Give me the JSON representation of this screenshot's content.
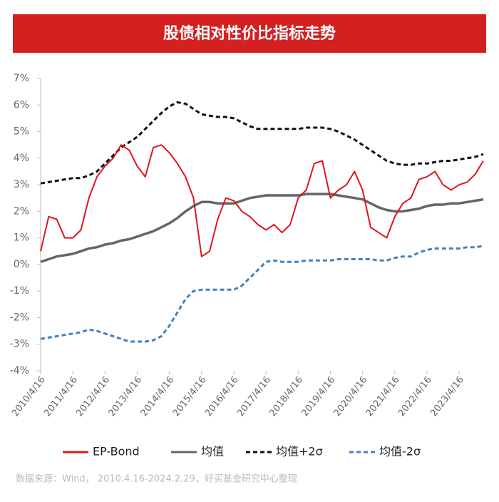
{
  "chart_data": {
    "type": "line",
    "title": "股债相对性价比指标走势",
    "source": "数据来源：Wind， 2010.4.16-2024.2.29，好买基金研究中心整理",
    "categories": [
      "2010/4/16",
      null,
      null,
      null,
      "2011/4/16",
      null,
      null,
      null,
      "2012/4/16",
      null,
      null,
      null,
      "2013/4/16",
      null,
      null,
      null,
      "2014/4/16",
      null,
      null,
      null,
      "2015/4/16",
      null,
      null,
      null,
      "2016/4/16",
      null,
      null,
      null,
      "2017/4/16",
      null,
      null,
      null,
      "2018/4/16",
      null,
      null,
      null,
      "2019/4/16",
      null,
      null,
      null,
      "2020/4/16",
      null,
      null,
      null,
      "2021/4/16",
      null,
      null,
      null,
      "2022/4/16",
      null,
      null,
      null,
      "2023/4/16",
      null,
      null,
      null
    ],
    "ylim": [
      -4,
      7
    ],
    "yticks": [
      {
        "value": -4,
        "label": "-4%"
      },
      {
        "value": -3,
        "label": "-3%"
      },
      {
        "value": -2,
        "label": "-2%"
      },
      {
        "value": -1,
        "label": "-1%"
      },
      {
        "value": 0,
        "label": "0%"
      },
      {
        "value": 1,
        "label": "1%"
      },
      {
        "value": 2,
        "label": "2%"
      },
      {
        "value": 3,
        "label": "3%"
      },
      {
        "value": 4,
        "label": "4%"
      },
      {
        "value": 5,
        "label": "5%"
      },
      {
        "value": 6,
        "label": "6%"
      },
      {
        "value": 7,
        "label": "7%"
      }
    ],
    "legend": "bottom",
    "series": [
      {
        "name": "EP-Bond",
        "color": "#e0141e",
        "dash": false,
        "values": [
          0.5,
          1.8,
          1.7,
          1.0,
          1.0,
          1.3,
          2.5,
          3.3,
          3.7,
          4.0,
          4.5,
          4.3,
          3.7,
          3.3,
          4.4,
          4.5,
          4.2,
          3.8,
          3.3,
          2.5,
          0.3,
          0.5,
          1.7,
          2.5,
          2.4,
          2.0,
          1.8,
          1.5,
          1.3,
          1.5,
          1.2,
          1.5,
          2.5,
          2.8,
          3.8,
          3.9,
          2.5,
          2.8,
          3.0,
          3.5,
          2.8,
          1.4,
          1.2,
          1.0,
          1.8,
          2.3,
          2.5,
          3.2,
          3.3,
          3.5,
          3.0,
          2.8,
          3.0,
          3.1,
          3.4,
          3.9
        ]
      },
      {
        "name": "均值",
        "color": "#666666",
        "dash": false,
        "values": [
          0.1,
          0.2,
          0.3,
          0.35,
          0.4,
          0.5,
          0.6,
          0.65,
          0.75,
          0.8,
          0.9,
          0.95,
          1.05,
          1.15,
          1.25,
          1.4,
          1.55,
          1.75,
          2.0,
          2.2,
          2.35,
          2.35,
          2.3,
          2.3,
          2.3,
          2.4,
          2.5,
          2.55,
          2.6,
          2.6,
          2.6,
          2.6,
          2.6,
          2.65,
          2.65,
          2.65,
          2.65,
          2.6,
          2.55,
          2.5,
          2.45,
          2.3,
          2.15,
          2.05,
          2.0,
          2.0,
          2.05,
          2.1,
          2.2,
          2.25,
          2.25,
          2.3,
          2.3,
          2.35,
          2.4,
          2.45
        ]
      },
      {
        "name": "均值+2σ",
        "color": "#111111",
        "dash": true,
        "values": [
          3.05,
          3.1,
          3.15,
          3.2,
          3.25,
          3.25,
          3.35,
          3.5,
          3.8,
          4.1,
          4.4,
          4.6,
          4.8,
          5.1,
          5.4,
          5.7,
          5.95,
          6.1,
          6.05,
          5.85,
          5.65,
          5.6,
          5.55,
          5.55,
          5.5,
          5.35,
          5.2,
          5.1,
          5.1,
          5.1,
          5.1,
          5.1,
          5.1,
          5.15,
          5.15,
          5.15,
          5.1,
          5.0,
          4.85,
          4.7,
          4.5,
          4.3,
          4.1,
          3.9,
          3.8,
          3.75,
          3.75,
          3.8,
          3.8,
          3.85,
          3.9,
          3.9,
          3.95,
          4.0,
          4.05,
          4.15
        ]
      },
      {
        "name": "均值-2σ",
        "color": "#3f82c0",
        "dash": true,
        "values": [
          -2.8,
          -2.75,
          -2.7,
          -2.65,
          -2.6,
          -2.55,
          -2.45,
          -2.5,
          -2.6,
          -2.7,
          -2.8,
          -2.9,
          -2.9,
          -2.9,
          -2.85,
          -2.7,
          -2.3,
          -1.8,
          -1.3,
          -1.0,
          -0.95,
          -0.95,
          -0.95,
          -0.95,
          -0.95,
          -0.8,
          -0.5,
          -0.2,
          0.1,
          0.15,
          0.1,
          0.1,
          0.1,
          0.15,
          0.15,
          0.15,
          0.15,
          0.2,
          0.2,
          0.2,
          0.2,
          0.2,
          0.15,
          0.15,
          0.25,
          0.3,
          0.3,
          0.45,
          0.55,
          0.6,
          0.6,
          0.6,
          0.6,
          0.65,
          0.65,
          0.7
        ]
      }
    ]
  }
}
